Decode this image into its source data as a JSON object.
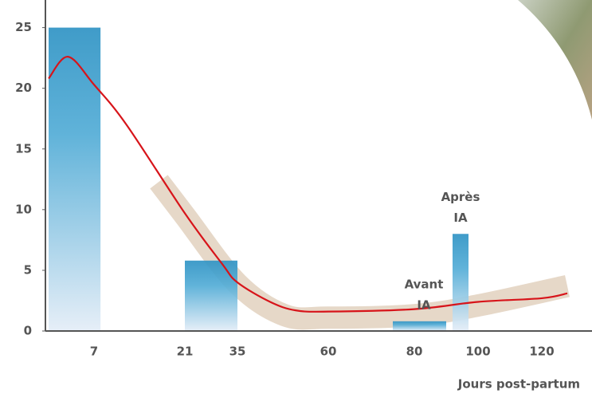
{
  "chart_data": {
    "type": "bar",
    "x_label": "Jours post-partum",
    "ylim": [
      0,
      25.5
    ],
    "yticks": [
      0,
      5,
      10,
      15,
      20,
      25
    ],
    "xticks": [
      7,
      21,
      35,
      60,
      80,
      100,
      120
    ],
    "bar_color": "#3d9fcb",
    "bars": {
      "x": [
        [
          0,
          8
        ],
        [
          21,
          35
        ],
        [
          75,
          90
        ],
        [
          92,
          97
        ]
      ],
      "values": [
        25,
        5.8,
        0.8,
        8
      ]
    },
    "curve": {
      "color": "#d7141a",
      "x": [
        0,
        3,
        7,
        12,
        21,
        31,
        35,
        44,
        51,
        60,
        80,
        100,
        120,
        128
      ],
      "y": [
        20.8,
        22.6,
        20.3,
        17,
        9.7,
        5.5,
        4,
        2.4,
        1.7,
        1.6,
        1.8,
        2.4,
        2.7,
        3.1
      ]
    },
    "band": {
      "color": "#e3d4c2",
      "x": [
        17,
        21,
        35,
        48,
        60,
        80,
        100,
        128
      ],
      "y": [
        12.3,
        9.5,
        3.9,
        1.3,
        1.1,
        1.3,
        2.1,
        3.7
      ]
    },
    "annotations": [
      {
        "lines": [
          "Avant",
          "IA"
        ],
        "x": 83
      },
      {
        "lines": [
          "Après",
          "IA"
        ],
        "x": 94.5
      }
    ]
  }
}
